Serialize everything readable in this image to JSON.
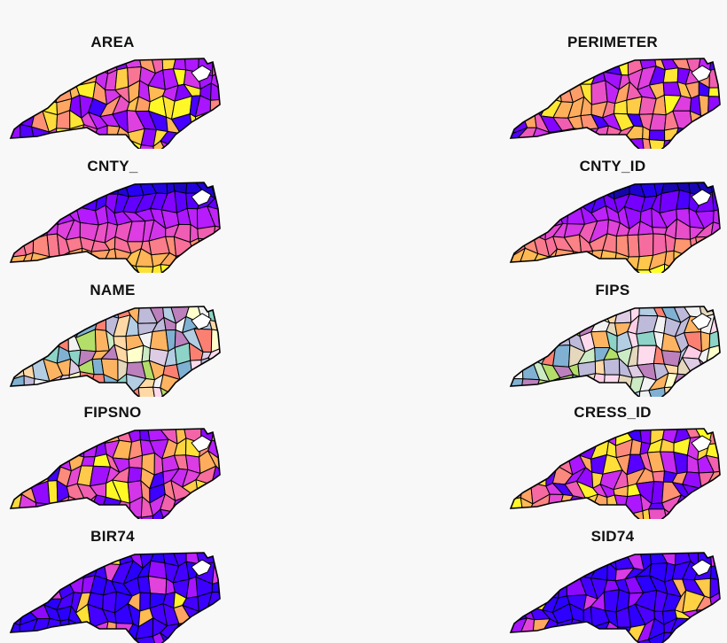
{
  "maps": [
    {
      "title": "AREA",
      "scheme": "continuous"
    },
    {
      "title": "PERIMETER",
      "scheme": "continuous"
    },
    {
      "title": "CNTY_",
      "scheme": "gradient"
    },
    {
      "title": "CNTY_ID",
      "scheme": "gradient"
    },
    {
      "title": "NAME",
      "scheme": "categorical"
    },
    {
      "title": "FIPS",
      "scheme": "categorical"
    },
    {
      "title": "FIPSNO",
      "scheme": "continuous"
    },
    {
      "title": "CRESS_ID",
      "scheme": "continuous"
    },
    {
      "title": "BIR74",
      "scheme": "skewed"
    },
    {
      "title": "SID74",
      "scheme": "skewed"
    }
  ],
  "colors": {
    "background": "#f8f8f8",
    "outline": "#000000",
    "plasma": [
      "#0d0887",
      "#2a00ff",
      "#7b00ff",
      "#b41aff",
      "#e040e0",
      "#f76aa0",
      "#ff9a6a",
      "#ffc84a",
      "#ffff20"
    ],
    "pastel": [
      "#b3cde3",
      "#ccebc5",
      "#decbe4",
      "#fed9a6",
      "#ffffcc",
      "#e5d8bd",
      "#fddaec",
      "#f2f2f2",
      "#8dd3c7",
      "#bebada",
      "#fb8072",
      "#80b1d3",
      "#fdb462",
      "#b3de69",
      "#fccde5",
      "#bc80bd"
    ]
  }
}
